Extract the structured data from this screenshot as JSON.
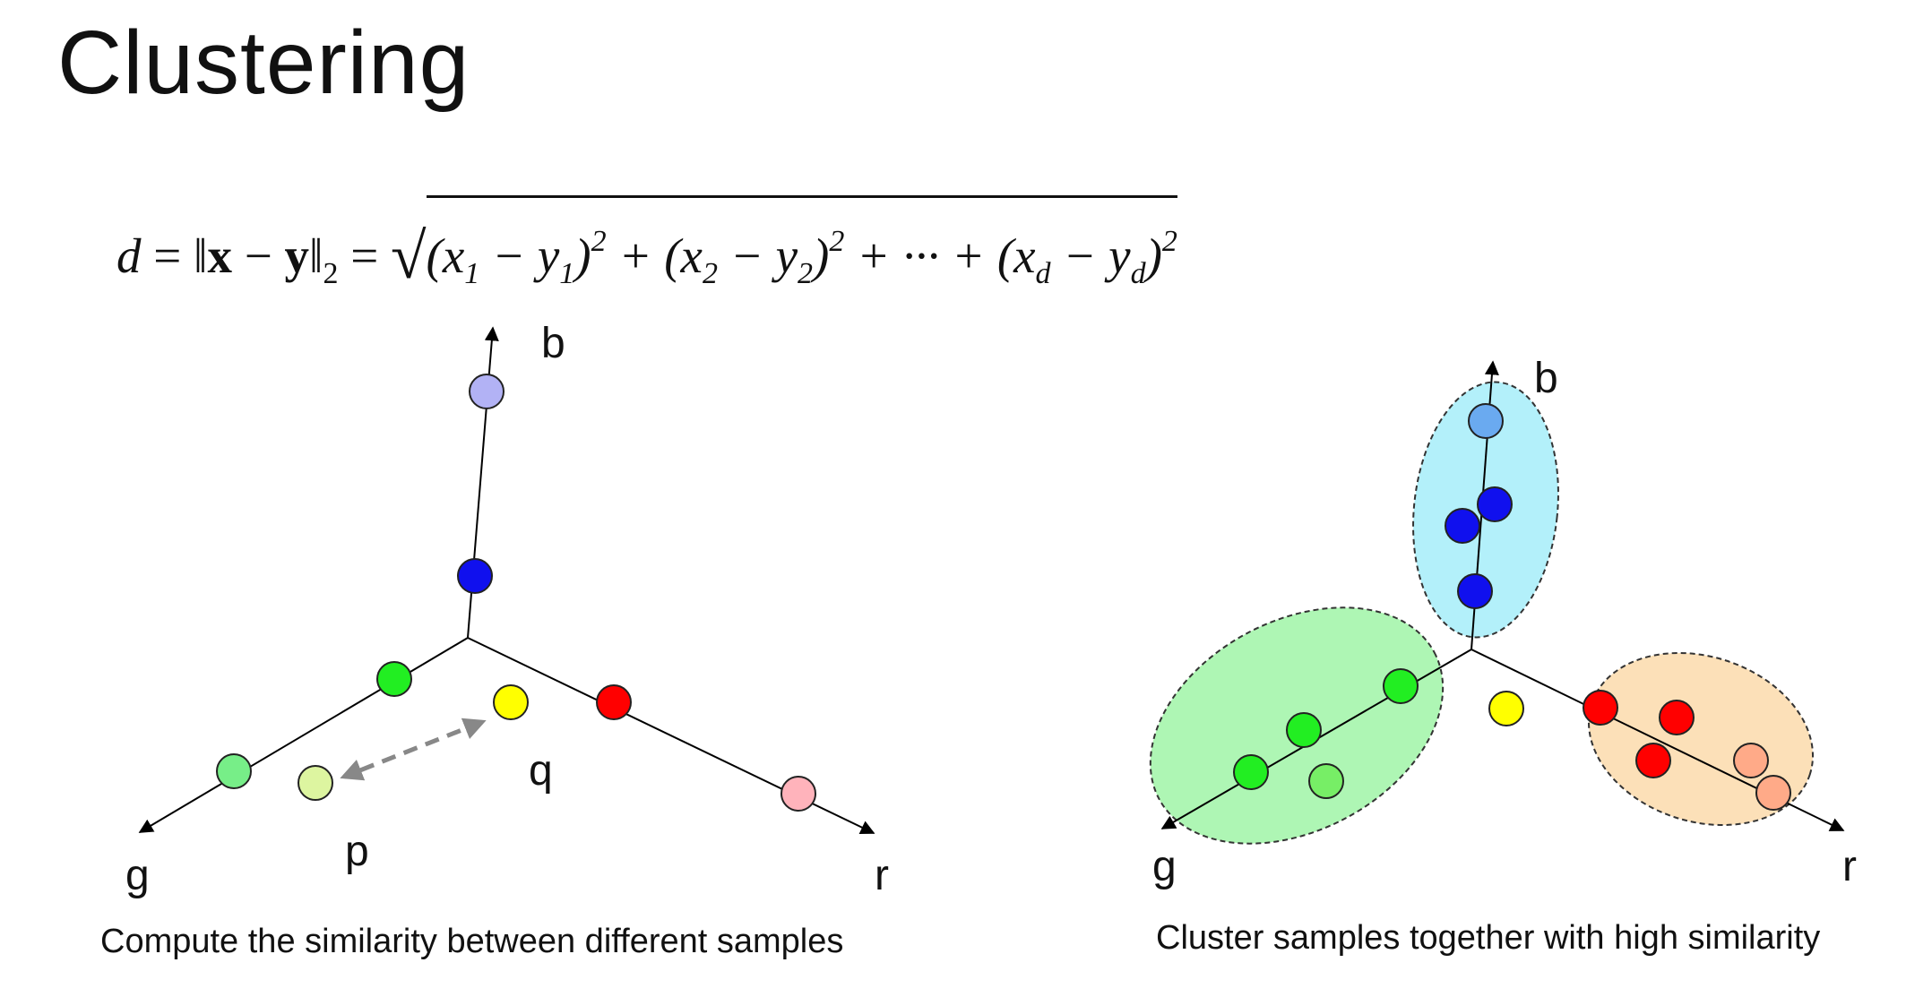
{
  "title": "Clustering",
  "formula": {
    "lhs_var": "d",
    "eq1": "=",
    "norm_open": "‖",
    "x": "x",
    "minus": "−",
    "y": "y",
    "norm_close": "‖",
    "norm_sub": "2",
    "eq2": "=",
    "radical": "√",
    "t1": "(x",
    "t1_sub": "1",
    "t1_minus": " − y",
    "t1_sub2": "1",
    "t1_close": ")",
    "t1_sup": "2",
    "plus1": " + ",
    "t2": "(x",
    "t2_sub": "2",
    "t2_minus": " − y",
    "t2_sub2": "2",
    "t2_close": ")",
    "t2_sup": "2",
    "plus2": " + ··· + ",
    "t3": "(x",
    "t3_sub": "d",
    "t3_minus": " − y",
    "t3_sub2": "d",
    "t3_close": ")",
    "t3_sup": "2"
  },
  "left_diagram": {
    "axis_labels": {
      "b": "b",
      "g": "g",
      "r": "r"
    },
    "point_labels": {
      "p": "p",
      "q": "q"
    },
    "caption": "Compute the similarity between different samples",
    "colors": {
      "lavender": "#b2b2f5",
      "blue": "#1010ee",
      "green": "#22ee22",
      "light_green": "#77ee88",
      "pale_green": "#ddf5a0",
      "yellow": "#ffff00",
      "red": "#ff0000",
      "pink": "#ffb3bb",
      "arrow_gray": "#888888"
    }
  },
  "right_diagram": {
    "axis_labels": {
      "b": "b",
      "g": "g",
      "r": "r"
    },
    "caption": "Cluster samples together with high similarity",
    "clusters": [
      {
        "name": "blue-cluster",
        "fill": "#b3f0fa"
      },
      {
        "name": "green-cluster",
        "fill": "#aef6b4"
      },
      {
        "name": "orange-cluster",
        "fill": "#fce0b8"
      }
    ],
    "colors": {
      "light_blue": "#6aaaf0",
      "blue": "#1010ee",
      "green": "#22ee22",
      "light_green": "#77ee66",
      "yellow": "#ffff00",
      "red": "#ff0000",
      "salmon": "#ffaa88"
    }
  }
}
